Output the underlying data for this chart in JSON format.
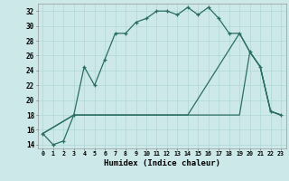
{
  "xlabel": "Humidex (Indice chaleur)",
  "xlim": [
    -0.5,
    23.5
  ],
  "ylim": [
    13.5,
    33.0
  ],
  "yticks": [
    14,
    16,
    18,
    20,
    22,
    24,
    26,
    28,
    30,
    32
  ],
  "xticks": [
    0,
    1,
    2,
    3,
    4,
    5,
    6,
    7,
    8,
    9,
    10,
    11,
    12,
    13,
    14,
    15,
    16,
    17,
    18,
    19,
    20,
    21,
    22,
    23
  ],
  "bg_color": "#cce8e8",
  "line_color": "#2a6e62",
  "series1_x": [
    0,
    1,
    2,
    3,
    4,
    5,
    6,
    7,
    8,
    9,
    10,
    11,
    12,
    13,
    14,
    15,
    16,
    17,
    18,
    19,
    20,
    21,
    22,
    23
  ],
  "series1_y": [
    15.5,
    14.0,
    14.5,
    18.0,
    24.5,
    22.0,
    25.5,
    29.0,
    29.0,
    30.5,
    31.0,
    32.0,
    32.0,
    31.5,
    32.5,
    31.5,
    32.5,
    31.0,
    29.0,
    29.0,
    26.5,
    24.5,
    18.5,
    18.0
  ],
  "series2_x": [
    0,
    3,
    14,
    19,
    20,
    21,
    22,
    23
  ],
  "series2_y": [
    15.5,
    18.0,
    18.0,
    29.0,
    26.5,
    24.5,
    18.5,
    18.0
  ],
  "series3_x": [
    0,
    3,
    18,
    19,
    20,
    21,
    22,
    23
  ],
  "series3_y": [
    15.5,
    18.0,
    18.0,
    18.0,
    26.5,
    24.5,
    18.5,
    18.0
  ]
}
